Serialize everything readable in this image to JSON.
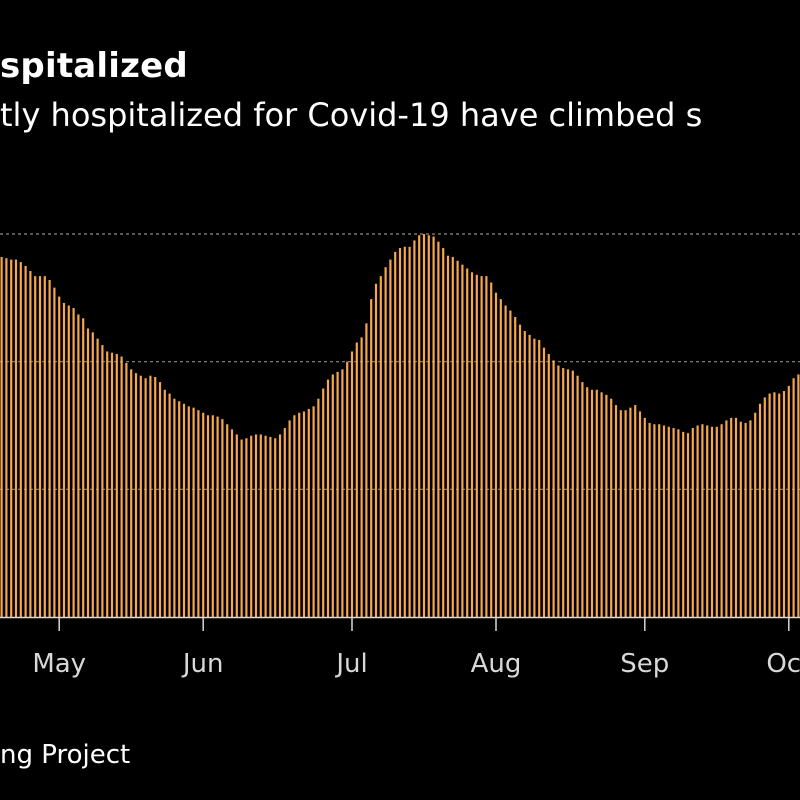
{
  "title": "spitalized",
  "subtitle": "tly hospitalized for Covid-19 have climbed s",
  "source": "ng Project",
  "colors": {
    "background": "#000000",
    "bar": "#f5a54a",
    "grid": "#8a8a8a",
    "axis": "#d8d8d8",
    "text": "#ffffff"
  },
  "chart_data": {
    "type": "bar",
    "title": "spitalized",
    "subtitle": "tly hospitalized for Covid-19 have climbed s",
    "xlabel": "",
    "ylabel": "",
    "y_axis_labels_visible": false,
    "ylim": [
      0,
      30
    ],
    "gridlines": [
      10,
      20,
      30
    ],
    "grid": true,
    "x_tick_labels": [
      "May",
      "Jun",
      "Jul",
      "Aug",
      "Sep",
      "Oct"
    ],
    "first_date": "Apr 19",
    "values": [
      28.2,
      28.1,
      28.0,
      28.0,
      27.8,
      27.5,
      27.1,
      26.7,
      26.7,
      26.7,
      26.4,
      25.8,
      25.1,
      24.6,
      24.4,
      24.2,
      23.7,
      23.4,
      22.6,
      22.3,
      21.8,
      21.3,
      20.8,
      20.7,
      20.6,
      20.4,
      19.9,
      19.4,
      19.1,
      18.9,
      18.7,
      18.9,
      18.8,
      18.4,
      17.8,
      17.5,
      17.1,
      16.9,
      16.7,
      16.5,
      16.4,
      16.2,
      16.0,
      15.8,
      15.8,
      15.7,
      15.5,
      15.1,
      14.7,
      14.3,
      13.9,
      14.0,
      14.2,
      14.3,
      14.3,
      14.2,
      14.1,
      14.0,
      14.3,
      14.8,
      15.4,
      15.8,
      16.0,
      16.1,
      16.3,
      16.5,
      17.1,
      17.9,
      18.6,
      19.0,
      19.2,
      19.4,
      20.0,
      20.8,
      21.5,
      21.9,
      23.0,
      24.9,
      26.1,
      26.7,
      27.4,
      28.0,
      28.6,
      28.9,
      29.0,
      29.0,
      29.5,
      29.9,
      30.0,
      29.9,
      29.8,
      29.4,
      28.9,
      28.3,
      28.2,
      27.9,
      27.6,
      27.3,
      27.0,
      26.8,
      26.7,
      26.7,
      26.2,
      25.4,
      24.9,
      24.4,
      24.0,
      23.5,
      22.9,
      22.4,
      22.1,
      21.8,
      21.7,
      21.1,
      20.6,
      20.1,
      19.7,
      19.5,
      19.4,
      19.3,
      18.9,
      18.4,
      18.0,
      17.8,
      17.8,
      17.6,
      17.4,
      17.1,
      16.6,
      16.2,
      16.2,
      16.4,
      16.6,
      16.1,
      15.6,
      15.2,
      15.1,
      15.1,
      15.0,
      14.9,
      14.8,
      14.7,
      14.5,
      14.4,
      14.8,
      15.0,
      15.1,
      15.0,
      14.9,
      14.9,
      15.1,
      15.4,
      15.6,
      15.6,
      15.3,
      15.2,
      15.4,
      16.0,
      16.7,
      17.2,
      17.5,
      17.6,
      17.5,
      17.7,
      18.1,
      18.7,
      19.0,
      19.2,
      19.3,
      19.2,
      19.1,
      19.0,
      19.2,
      19.6,
      20.1
    ]
  }
}
